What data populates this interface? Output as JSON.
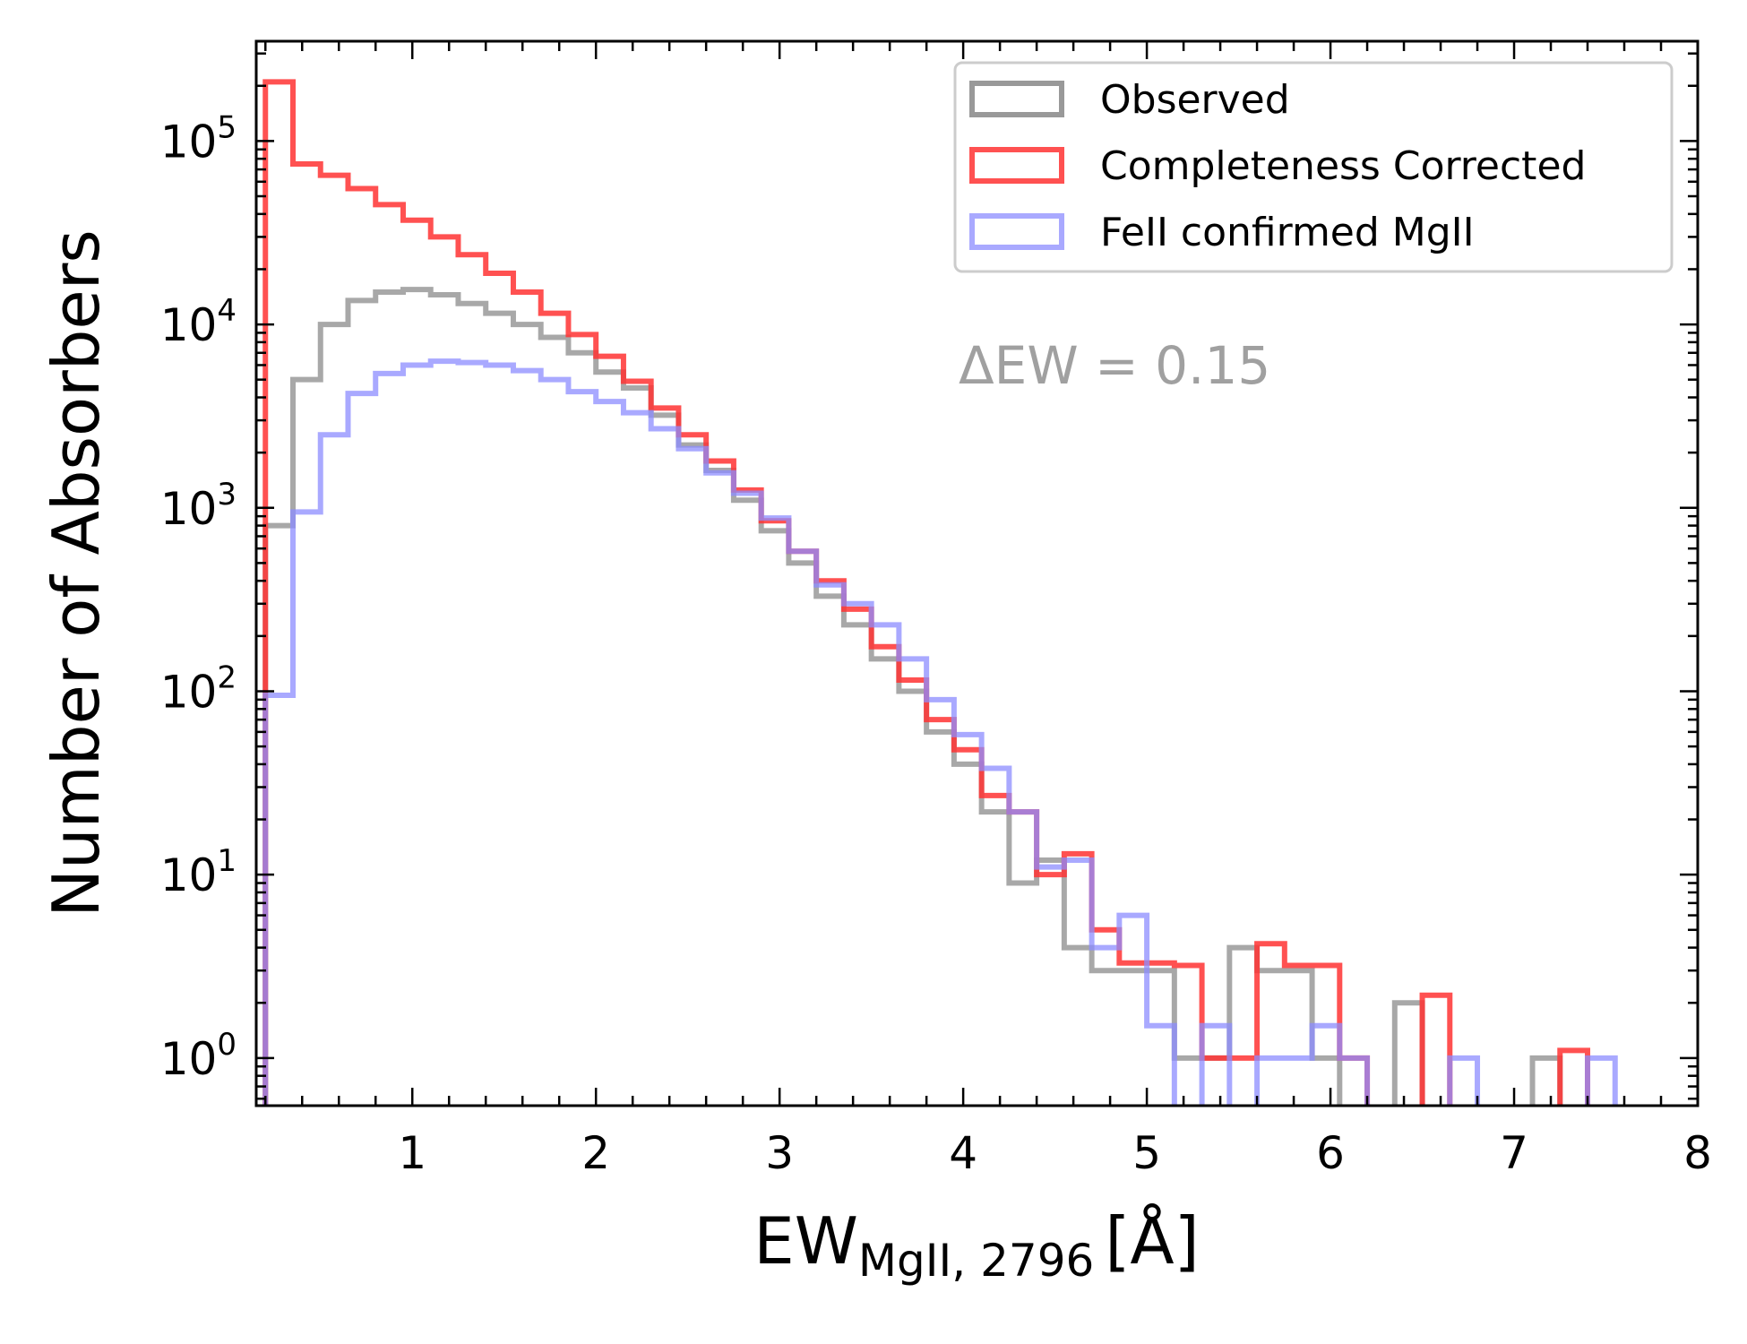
{
  "chart_data": {
    "type": "histogram",
    "x_scale": "linear",
    "y_scale": "log",
    "xlim": [
      0.15,
      8
    ],
    "ylim": [
      0.55,
      350000
    ],
    "xlabel": "EW",
    "xlabel_sub": "MgII, 2796",
    "xlabel_unit": "[Å]",
    "ylabel": "Number of Absorbers",
    "x_tick_labels": [
      "1",
      "2",
      "3",
      "4",
      "5",
      "6",
      "7",
      "8"
    ],
    "x_ticks": [
      1,
      2,
      3,
      4,
      5,
      6,
      7,
      8
    ],
    "y_ticks": [
      1,
      10,
      100,
      1000,
      10000,
      100000
    ],
    "y_tick_labels": [
      {
        "base": "10",
        "exp": "0"
      },
      {
        "base": "10",
        "exp": "1"
      },
      {
        "base": "10",
        "exp": "2"
      },
      {
        "base": "10",
        "exp": "3"
      },
      {
        "base": "10",
        "exp": "4"
      },
      {
        "base": "10",
        "exp": "5"
      }
    ],
    "annotation": "ΔEW = 0.15",
    "legend_placement": "upper-right",
    "bin_width": 0.15,
    "bin_start": 0.2,
    "series": [
      {
        "name": "Observed",
        "color": "#999999",
        "counts": [
          800,
          5000,
          10000,
          13500,
          15000,
          15500,
          14500,
          13000,
          11500,
          10000,
          8500,
          7000,
          5500,
          4500,
          3200,
          2200,
          1600,
          1100,
          750,
          500,
          330,
          230,
          150,
          100,
          60,
          40,
          22,
          9,
          12,
          4,
          3,
          3,
          3,
          1,
          1,
          4,
          3,
          3,
          1,
          0,
          0,
          2,
          0,
          0,
          0,
          0,
          1
        ]
      },
      {
        "name": "Completeness Corrected",
        "color": "#ff3333",
        "counts": [
          210000,
          75000,
          65000,
          55000,
          45000,
          37000,
          30000,
          24000,
          19000,
          15000,
          11500,
          8800,
          6700,
          4900,
          3500,
          2500,
          1800,
          1250,
          850,
          580,
          400,
          280,
          175,
          115,
          70,
          48,
          27,
          22,
          10,
          13,
          5,
          3.3,
          3.3,
          3.2,
          1,
          1,
          4.2,
          3.2,
          3.2,
          1,
          0,
          0,
          2.2,
          0,
          0,
          0,
          0,
          1.1
        ]
      },
      {
        "name": "FeII confirmed MgII",
        "color": "#8c8cff",
        "counts": [
          95,
          950,
          2500,
          4200,
          5400,
          6000,
          6300,
          6200,
          6000,
          5600,
          5000,
          4300,
          3800,
          3300,
          2700,
          2100,
          1550,
          1200,
          880,
          580,
          380,
          300,
          230,
          150,
          90,
          58,
          38,
          22,
          11,
          12,
          4,
          6,
          1.5,
          0,
          1.5,
          0,
          1,
          1,
          1.5,
          1,
          0,
          0,
          0,
          1,
          0,
          0,
          0,
          0,
          1
        ]
      }
    ]
  }
}
